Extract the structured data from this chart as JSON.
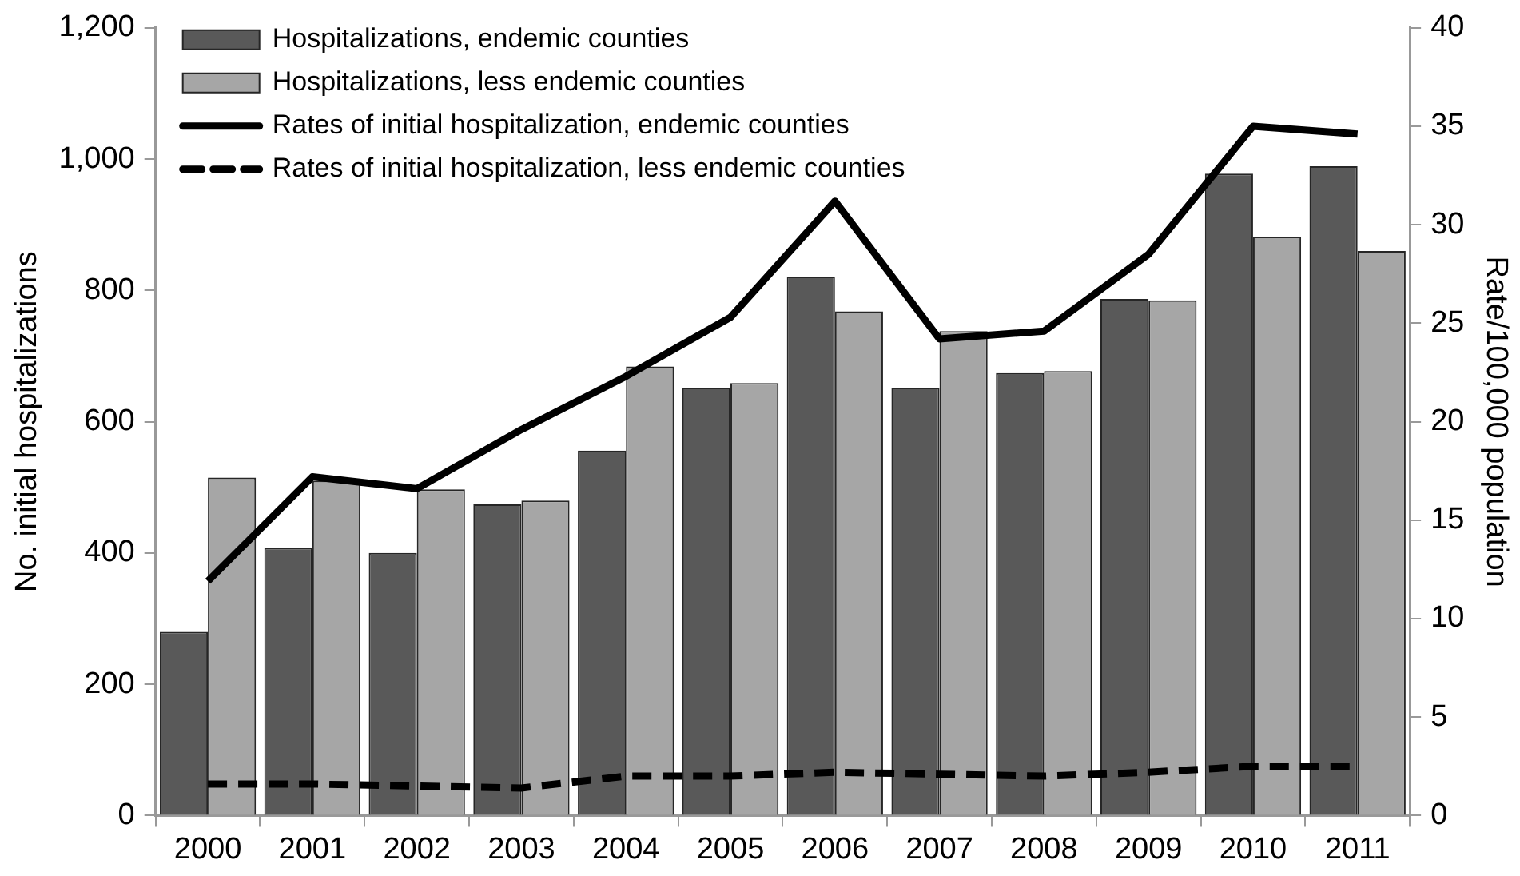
{
  "chart_data": {
    "type": "bar",
    "ylabel": "No. initial hospitalizations",
    "y2label": "Rate/100,000 population",
    "categories": [
      "2000",
      "2001",
      "2002",
      "2003",
      "2004",
      "2005",
      "2006",
      "2007",
      "2008",
      "2009",
      "2010",
      "2011"
    ],
    "series": [
      {
        "name": "Hospitalizations, endemic counties",
        "color": "#595959",
        "values": [
          280,
          408,
          400,
          474,
          556,
          652,
          821,
          652,
          674,
          787,
          978,
          989
        ]
      },
      {
        "name": "Hospitalizations, less endemic counties",
        "color": "#a6a6a6",
        "values": [
          515,
          510,
          497,
          480,
          684,
          659,
          768,
          738,
          677,
          785,
          882,
          860
        ]
      },
      {
        "name": "Rates of initial hospitalization, endemic counties",
        "type": "line",
        "axis": "y2",
        "color": "#000000",
        "line_style": "solid",
        "values": [
          11.9,
          17.2,
          16.6,
          19.6,
          22.3,
          25.3,
          31.2,
          24.2,
          24.6,
          28.5,
          35,
          34.6
        ]
      },
      {
        "name": "Rates of initial hospitalization, less endemic counties",
        "type": "line",
        "axis": "y2",
        "color": "#000000",
        "line_style": "dashed",
        "values": [
          1.6,
          1.6,
          1.5,
          1.4,
          2,
          2,
          2.2,
          2.1,
          2,
          2.2,
          2.5,
          2.5
        ]
      }
    ],
    "ylim": [
      0,
      1200
    ],
    "yticks": [
      0,
      {
        "value": 200,
        "label": "200"
      },
      {
        "value": 400,
        "label": "400"
      },
      {
        "value": 600,
        "label": "600"
      },
      {
        "value": 800,
        "label": "800"
      },
      {
        "value": 1000,
        "label": "1,000"
      },
      {
        "value": 1200,
        "label": "1,200"
      }
    ],
    "y2lim": [
      0,
      40
    ],
    "y2ticks": [
      0,
      5,
      10,
      15,
      20,
      25,
      30,
      35,
      40
    ],
    "grid": false,
    "legend": "top left",
    "marker": "none"
  }
}
